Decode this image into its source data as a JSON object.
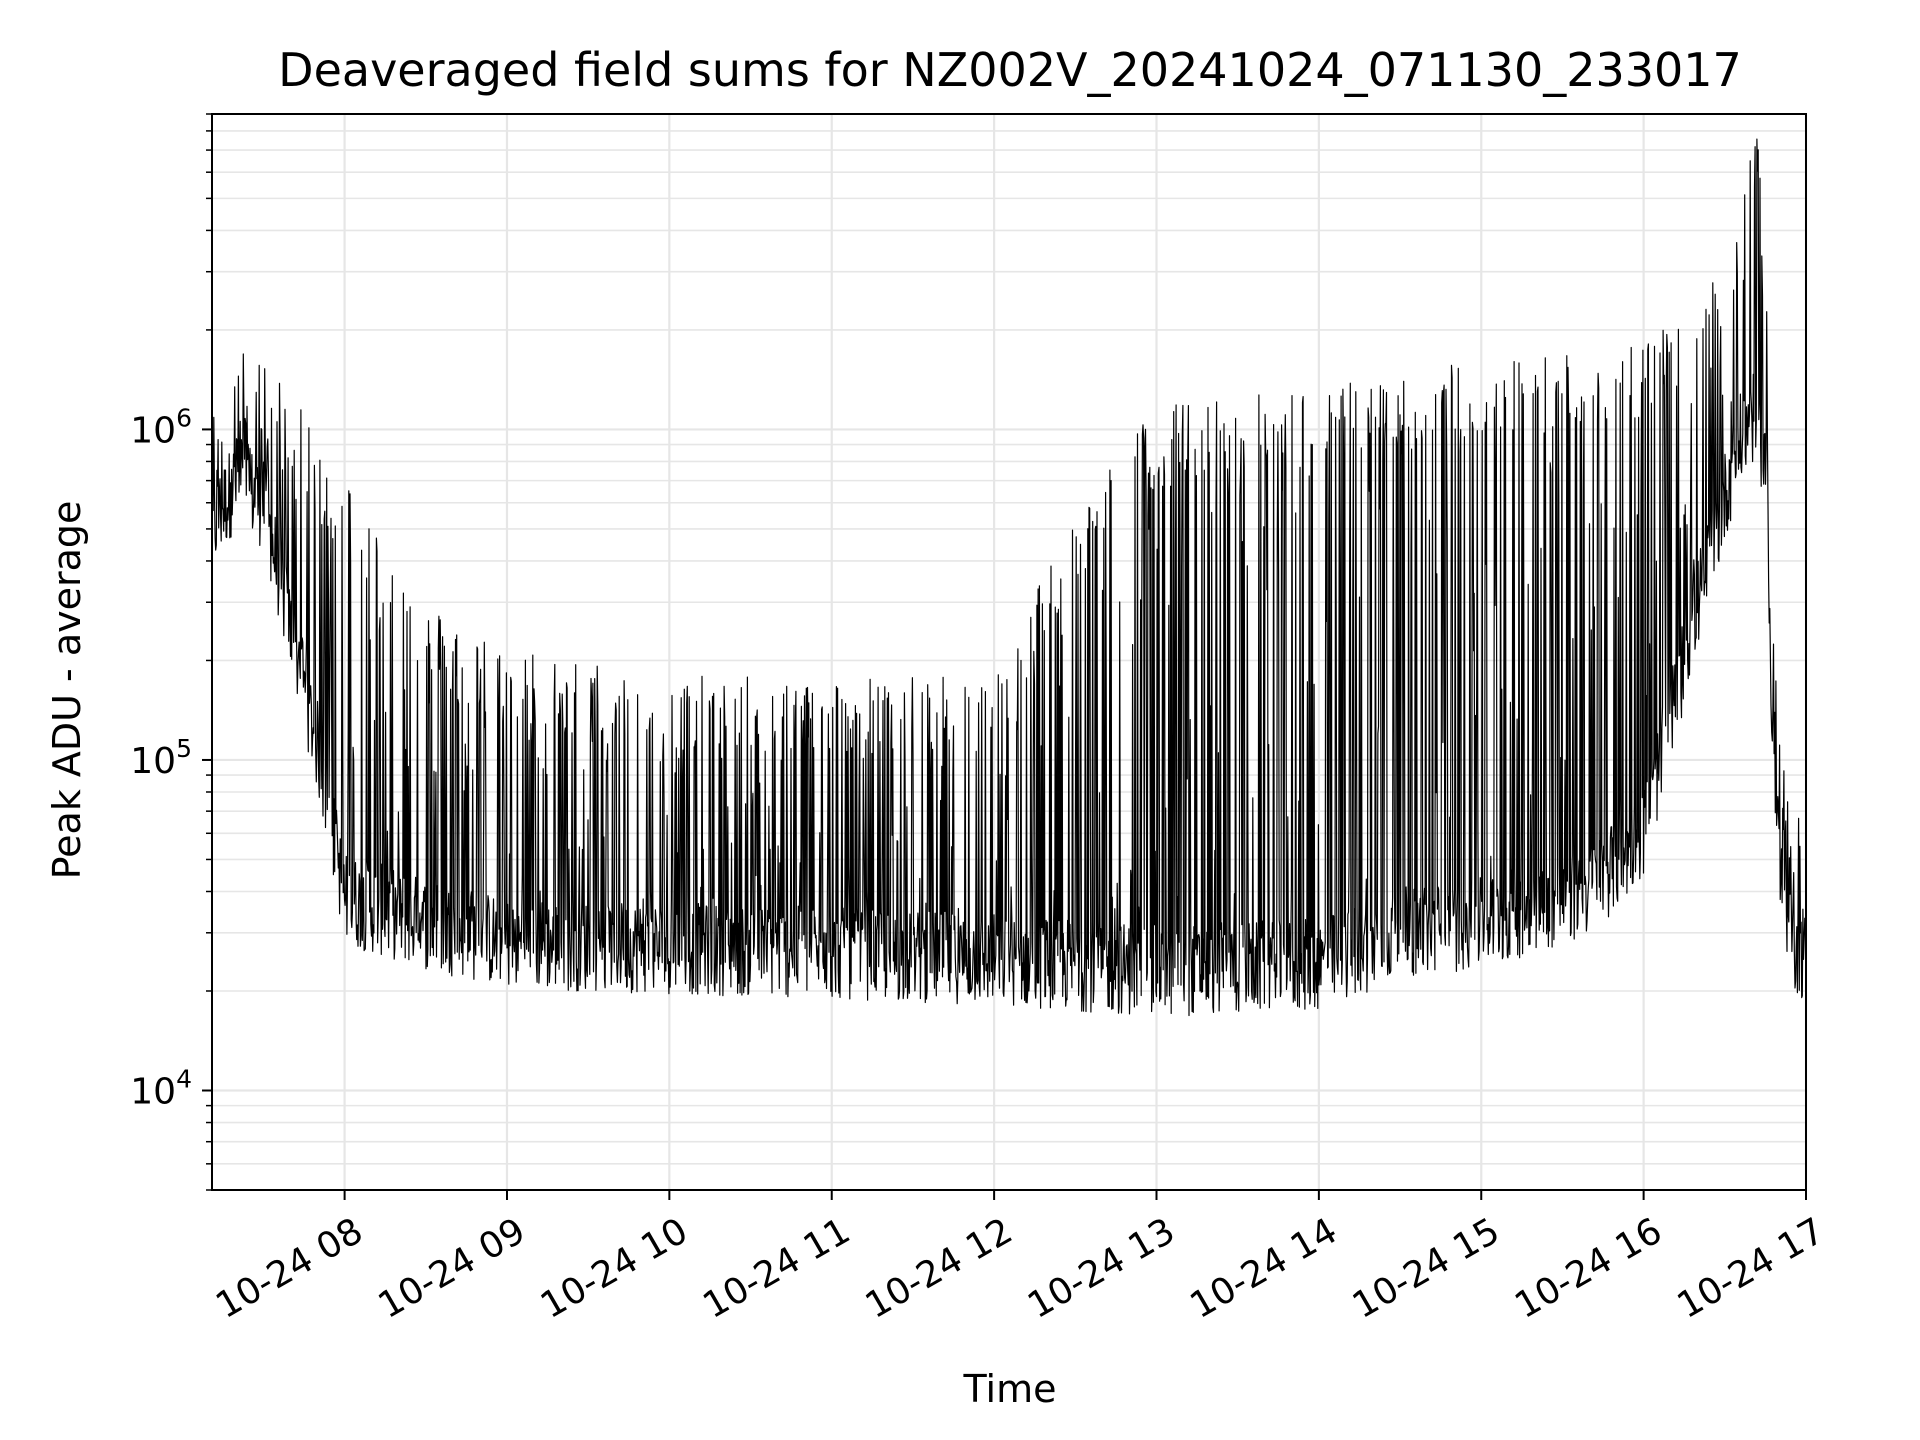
{
  "chart_data": {
    "type": "line",
    "title": "Deaveraged field sums for NZ002V_20241024_071130_233017",
    "xlabel": "Time",
    "ylabel": "Peak ADU - average",
    "yscale": "log",
    "ylim": [
      5000,
      9000000
    ],
    "xlim": [
      "2024-10-24 07:11",
      "2024-10-24 17:00"
    ],
    "grid": true,
    "line_color": "#000000",
    "grid_color": "#e6e6e6",
    "x_ticks": [
      {
        "t": "2024-10-24 08:00",
        "label": "10-24 08"
      },
      {
        "t": "2024-10-24 09:00",
        "label": "10-24 09"
      },
      {
        "t": "2024-10-24 10:00",
        "label": "10-24 10"
      },
      {
        "t": "2024-10-24 11:00",
        "label": "10-24 11"
      },
      {
        "t": "2024-10-24 12:00",
        "label": "10-24 12"
      },
      {
        "t": "2024-10-24 13:00",
        "label": "10-24 13"
      },
      {
        "t": "2024-10-24 14:00",
        "label": "10-24 14"
      },
      {
        "t": "2024-10-24 15:00",
        "label": "10-24 15"
      },
      {
        "t": "2024-10-24 16:00",
        "label": "10-24 16"
      },
      {
        "t": "2024-10-24 17:00",
        "label": "10-24 17"
      }
    ],
    "y_ticks": [
      {
        "value": 10000,
        "label": "10",
        "exp": "4"
      },
      {
        "value": 100000,
        "label": "10",
        "exp": "5"
      },
      {
        "value": 1000000,
        "label": "10",
        "exp": "6"
      }
    ],
    "series": [
      {
        "profile": [
          {
            "t": "2024-10-24 07:11",
            "base": 500000,
            "peak": 750000
          },
          {
            "t": "2024-10-24 07:20",
            "base": 700000,
            "peak": 1200000
          },
          {
            "t": "2024-10-24 07:30",
            "base": 600000,
            "peak": 1100000
          },
          {
            "t": "2024-10-24 07:40",
            "base": 250000,
            "peak": 900000
          },
          {
            "t": "2024-10-24 07:50",
            "base": 110000,
            "peak": 600000
          },
          {
            "t": "2024-10-24 08:00",
            "base": 38000,
            "peak": 500000
          },
          {
            "t": "2024-10-24 08:30",
            "base": 32000,
            "peak": 200000
          },
          {
            "t": "2024-10-24 09:00",
            "base": 28000,
            "peak": 150000
          },
          {
            "t": "2024-10-24 10:00",
            "base": 27000,
            "peak": 120000
          },
          {
            "t": "2024-10-24 11:00",
            "base": 26000,
            "peak": 120000
          },
          {
            "t": "2024-10-24 12:00",
            "base": 25000,
            "peak": 120000
          },
          {
            "t": "2024-10-24 12:30",
            "base": 24000,
            "peak": 400000
          },
          {
            "t": "2024-10-24 13:00",
            "base": 23000,
            "peak": 800000
          },
          {
            "t": "2024-10-24 14:00",
            "base": 24000,
            "peak": 900000
          },
          {
            "t": "2024-10-24 14:30",
            "base": 30000,
            "peak": 1000000
          },
          {
            "t": "2024-10-24 15:00",
            "base": 32000,
            "peak": 1100000
          },
          {
            "t": "2024-10-24 15:40",
            "base": 40000,
            "peak": 1200000
          },
          {
            "t": "2024-10-24 16:00",
            "base": 60000,
            "peak": 1300000
          },
          {
            "t": "2024-10-24 16:20",
            "base": 300000,
            "peak": 1400000
          },
          {
            "t": "2024-10-24 16:35",
            "base": 900000,
            "peak": 3000000
          },
          {
            "t": "2024-10-24 16:40",
            "base": 1100000,
            "peak": 7000000
          },
          {
            "t": "2024-10-24 16:45",
            "base": 800000,
            "peak": 3000000
          },
          {
            "t": "2024-10-24 16:48",
            "base": 100000,
            "peak": 200000
          },
          {
            "t": "2024-10-24 16:52",
            "base": 30000,
            "peak": 60000
          },
          {
            "t": "2024-10-24 17:00",
            "base": 25000,
            "peak": 40000
          }
        ],
        "samples": 2600
      }
    ]
  }
}
